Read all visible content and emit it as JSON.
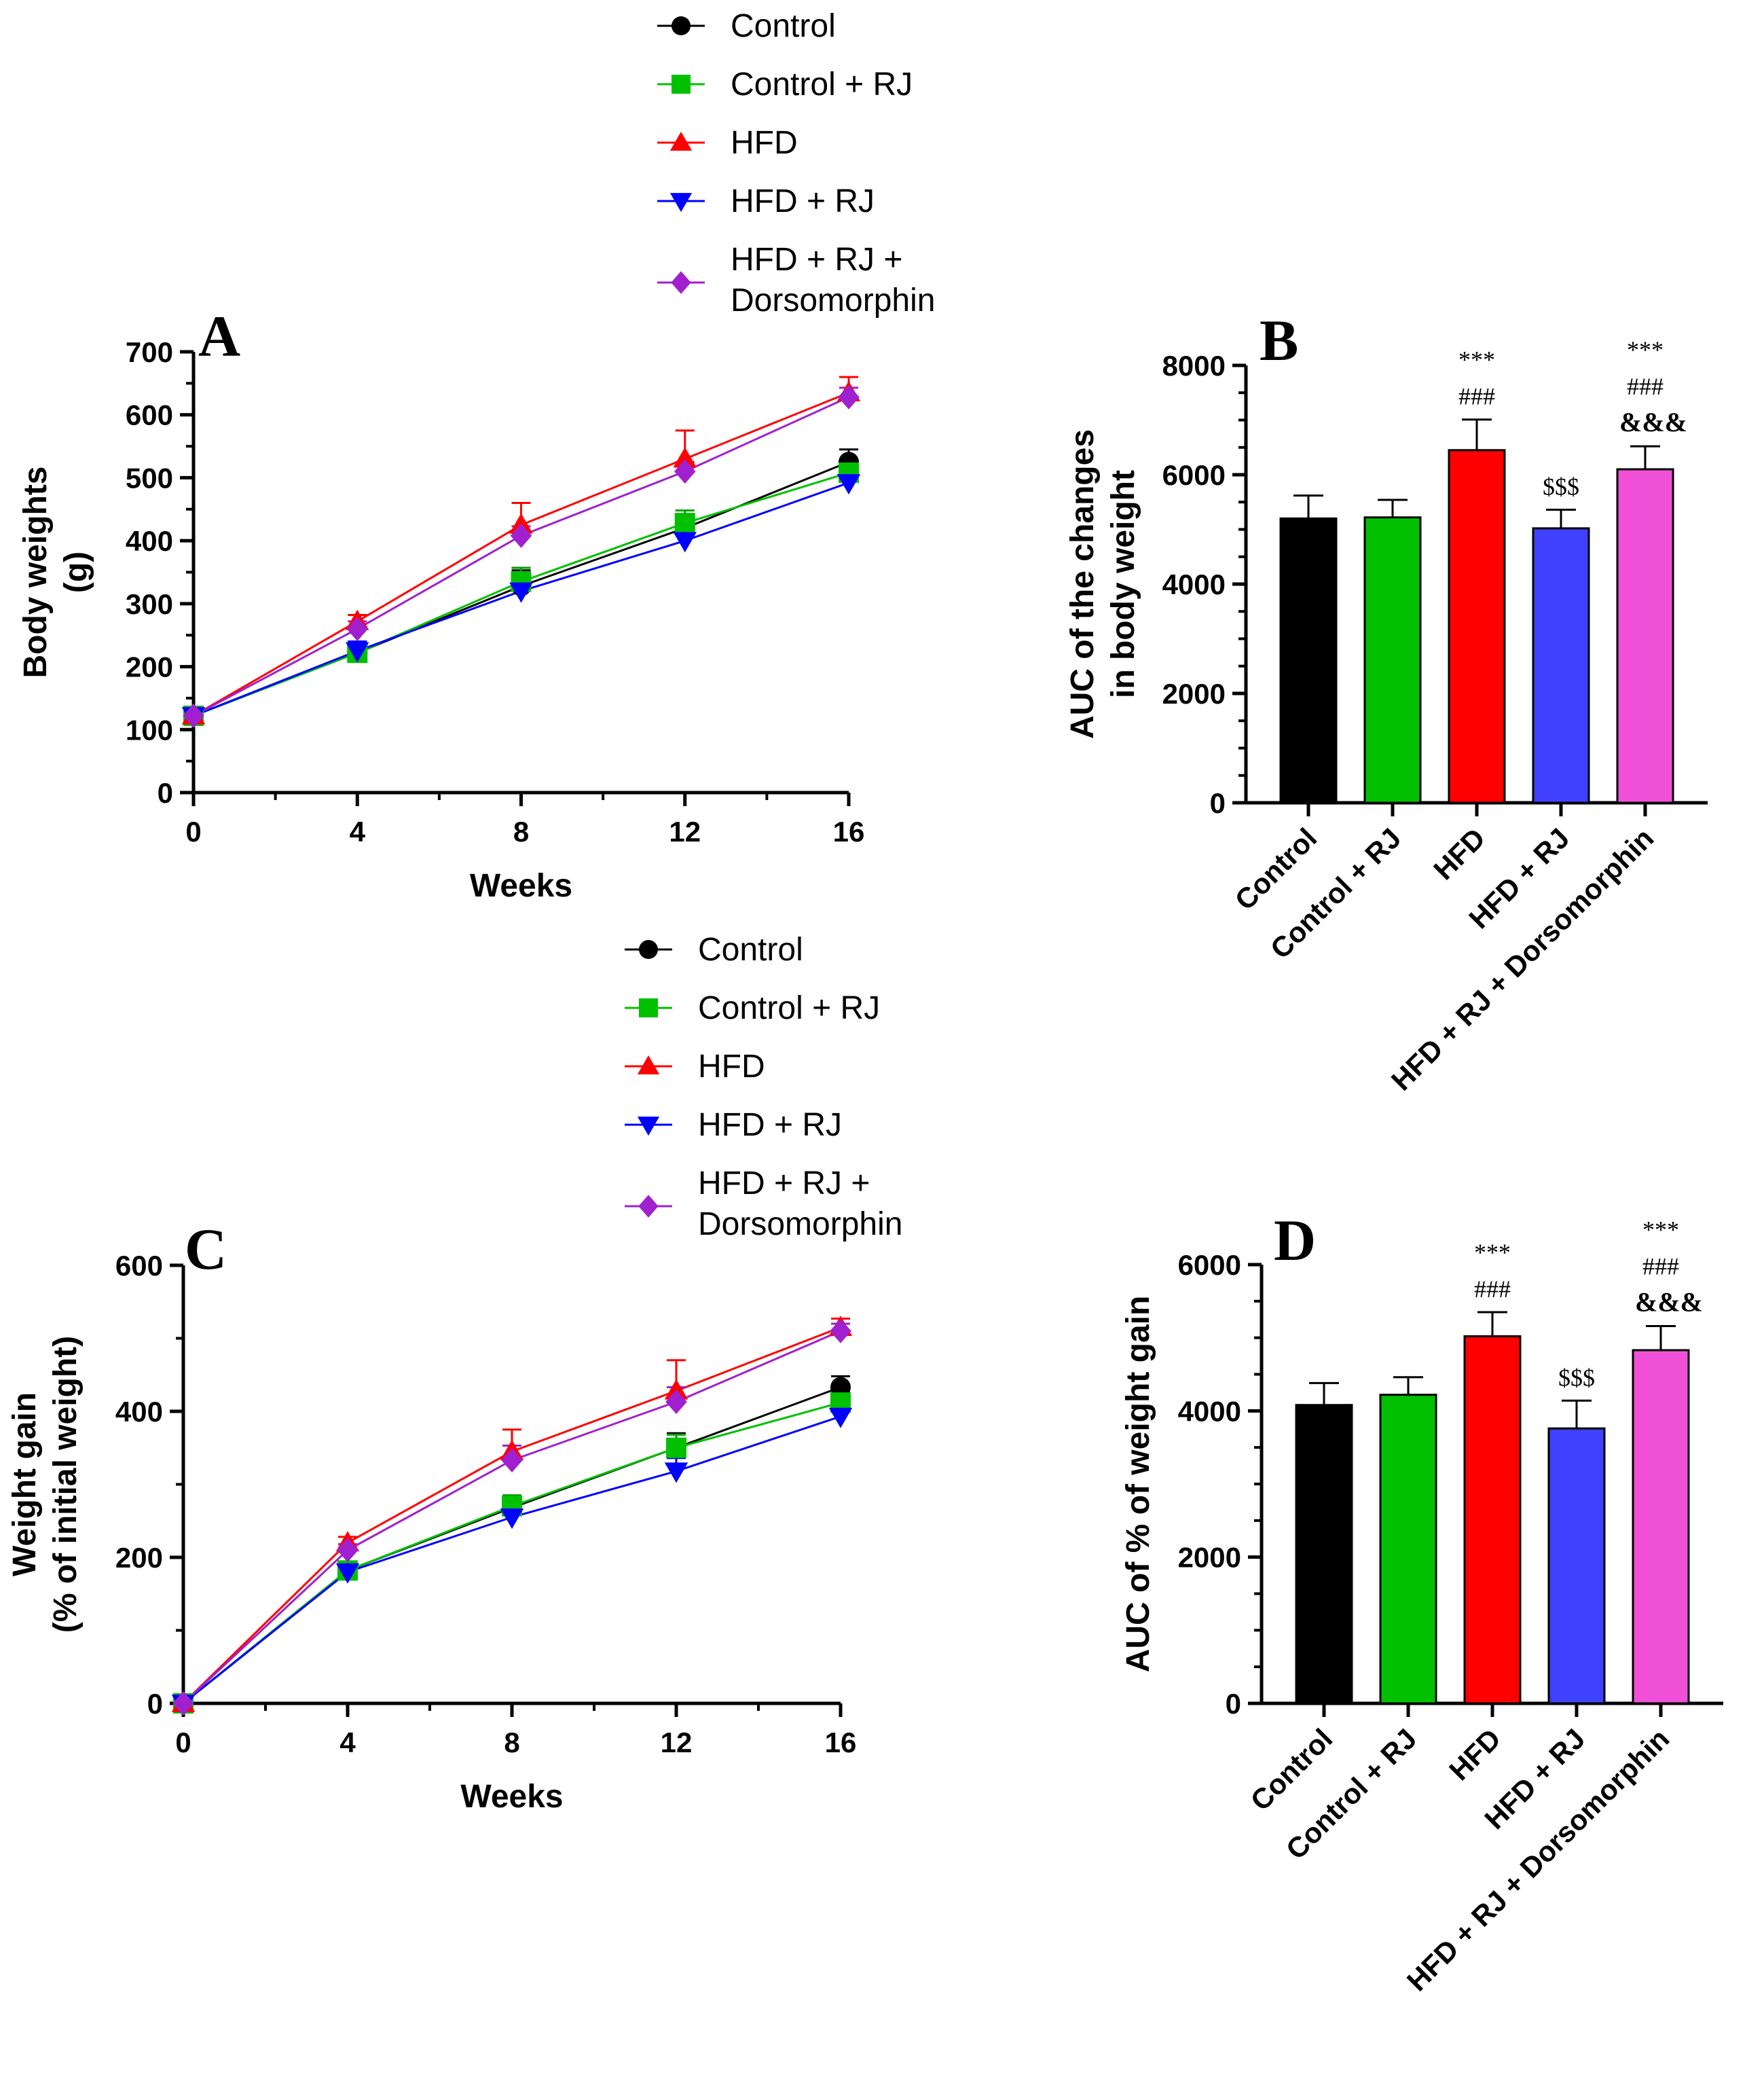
{
  "legend": {
    "entries": [
      {
        "label": "Control",
        "color": "#000000",
        "marker": "circle"
      },
      {
        "label": "Control + RJ",
        "color": "#00c000",
        "marker": "square"
      },
      {
        "label": "HFD",
        "color": "#ff0000",
        "marker": "triangle-up"
      },
      {
        "label": "HFD + RJ",
        "color": "#0000ff",
        "marker": "triangle-down"
      },
      {
        "label": "HFD + RJ +",
        "label2": "Dorsomorphin",
        "color": "#a020d0",
        "marker": "diamond"
      }
    ]
  },
  "chart_data": [
    {
      "panel": "A",
      "type": "line",
      "xlabel": "Weeks",
      "ylabel_line1": "Body weights",
      "ylabel_line2": "(g)",
      "x": [
        0,
        4,
        8,
        12,
        16
      ],
      "xticks": [
        "0",
        "4",
        "8",
        "12",
        "16"
      ],
      "ylim": [
        0,
        700
      ],
      "yticks": [
        "0",
        "100",
        "200",
        "300",
        "400",
        "500",
        "600",
        "700"
      ],
      "series": [
        {
          "name": "Control",
          "values": [
            122,
            222,
            328,
            420,
            525
          ],
          "errors": [
            8,
            18,
            25,
            22,
            20
          ]
        },
        {
          "name": "Control + RJ",
          "values": [
            122,
            222,
            335,
            428,
            508
          ],
          "errors": [
            8,
            15,
            22,
            20,
            15
          ]
        },
        {
          "name": "HFD",
          "values": [
            122,
            272,
            425,
            530,
            635
          ],
          "errors": [
            8,
            10,
            35,
            45,
            25
          ]
        },
        {
          "name": "HFD + RJ",
          "values": [
            122,
            225,
            320,
            400,
            492
          ],
          "errors": [
            8,
            15,
            20,
            15,
            10
          ]
        },
        {
          "name": "HFD + RJ + Dorsomorphin",
          "values": [
            122,
            260,
            408,
            510,
            628
          ],
          "errors": [
            8,
            12,
            15,
            15,
            15
          ]
        }
      ]
    },
    {
      "panel": "B",
      "type": "bar",
      "ylabel_line1": "AUC of the changes",
      "ylabel_line2": "in body weight",
      "categories": [
        "Control",
        "Control + RJ",
        "HFD",
        "HFD + RJ",
        "HFD + RJ + Dorsomorphin"
      ],
      "values": [
        5200,
        5220,
        6450,
        5020,
        6100
      ],
      "errors": [
        420,
        320,
        560,
        340,
        420
      ],
      "colors": [
        "#000000",
        "#00c000",
        "#ff0000",
        "#4040ff",
        "#f050d8"
      ],
      "ylim": [
        0,
        8000
      ],
      "yticks": [
        "0",
        "2000",
        "4000",
        "6000",
        "8000"
      ],
      "annotations": [
        [],
        [],
        [
          "***",
          "###"
        ],
        [
          "$$$"
        ],
        [
          "***",
          "###",
          "&&&"
        ]
      ]
    },
    {
      "panel": "C",
      "type": "line",
      "xlabel": "Weeks",
      "ylabel_line1": "Weight gain",
      "ylabel_line2": "(% of initial weight)",
      "x": [
        0,
        4,
        8,
        12,
        16
      ],
      "xticks": [
        "0",
        "4",
        "8",
        "12",
        "16"
      ],
      "ylim": [
        0,
        600
      ],
      "yticks": [
        "0",
        "200",
        "400",
        "600"
      ],
      "series": [
        {
          "name": "Control",
          "values": [
            0,
            182,
            268,
            350,
            433
          ],
          "errors": [
            3,
            12,
            15,
            20,
            15
          ]
        },
        {
          "name": "Control + RJ",
          "values": [
            0,
            182,
            270,
            350,
            412
          ],
          "errors": [
            3,
            10,
            15,
            18,
            15
          ]
        },
        {
          "name": "HFD",
          "values": [
            0,
            220,
            345,
            428,
            515
          ],
          "errors": [
            3,
            8,
            30,
            42,
            12
          ]
        },
        {
          "name": "HFD + RJ",
          "values": [
            0,
            180,
            255,
            318,
            393
          ],
          "errors": [
            3,
            10,
            20,
            18,
            18
          ]
        },
        {
          "name": "HFD + RJ + Dorsomorphin",
          "values": [
            0,
            210,
            333,
            413,
            510
          ],
          "errors": [
            3,
            8,
            20,
            20,
            10
          ]
        }
      ]
    },
    {
      "panel": "D",
      "type": "bar",
      "ylabel_line1": "AUC of % of weight gain",
      "categories": [
        "Control",
        "Control + RJ",
        "HFD",
        "HFD + RJ",
        "HFD + RJ + Dorsomorphin"
      ],
      "values": [
        4080,
        4220,
        5020,
        3760,
        4830
      ],
      "errors": [
        300,
        240,
        330,
        380,
        330
      ],
      "colors": [
        "#000000",
        "#00c000",
        "#ff0000",
        "#4040ff",
        "#f050d8"
      ],
      "ylim": [
        0,
        6000
      ],
      "yticks": [
        "0",
        "2000",
        "4000",
        "6000"
      ],
      "annotations": [
        [],
        [],
        [
          "***",
          "###"
        ],
        [
          "$$$"
        ],
        [
          "***",
          "###",
          "&&&"
        ]
      ]
    }
  ]
}
